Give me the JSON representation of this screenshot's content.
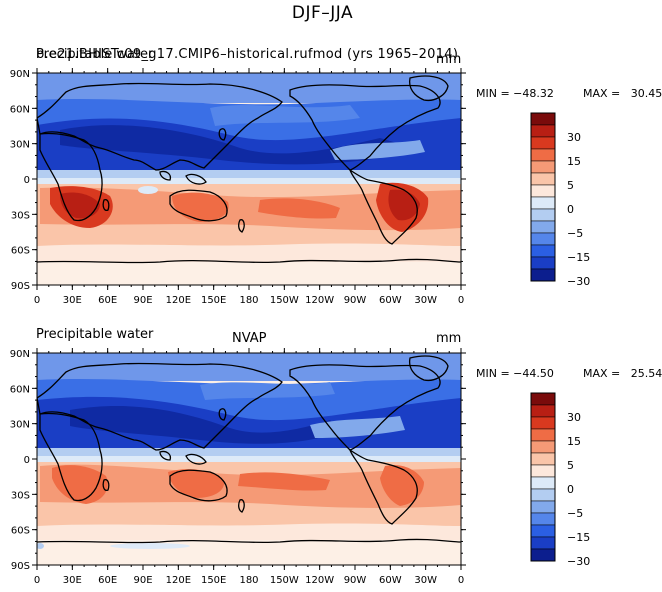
{
  "figure": {
    "title": "DJF–JJA"
  },
  "panels": [
    {
      "left_title": "Precipitable water",
      "overlay_title": "b.e21.BHISTc09_g17.CMIP6–historical.rufmod (yrs 1965–2014)",
      "center_title": "",
      "units": "mm",
      "min_label": "MIN = −48.32",
      "max_label": "MAX =   30.45"
    },
    {
      "left_title": "Precipitable water",
      "overlay_title": "",
      "center_title": "NVAP",
      "units": "mm",
      "min_label": "MIN = −44.50",
      "max_label": "MAX =   25.54"
    }
  ],
  "axes": {
    "lat_ticks": [
      "90N",
      "60N",
      "30N",
      "0",
      "30S",
      "60S",
      "90S"
    ],
    "lon_ticks": [
      "0",
      "30E",
      "60E",
      "90E",
      "120E",
      "150E",
      "180",
      "150W",
      "120W",
      "90W",
      "60W",
      "30W",
      "0"
    ]
  },
  "colorbar": {
    "labels": [
      "30",
      "15",
      "5",
      "0",
      "−5",
      "−15",
      "−30"
    ],
    "colors": [
      "#7a0b0b",
      "#b81f14",
      "#d9391f",
      "#ef6c45",
      "#f59a76",
      "#fac5a9",
      "#fde8dc",
      "#ddeaf8",
      "#b3cdf1",
      "#82a9eb",
      "#5586ea",
      "#2b5fe3",
      "#1a3ec5",
      "#0c1e8e"
    ]
  },
  "palette": {
    "deep_blue": "#1a3ec5",
    "mid_blue": "#3a6fe6",
    "light_blue": "#82a9eb",
    "pale_blue": "#c6dbf7",
    "pale_red": "#fad2bd",
    "light_red": "#f59a76",
    "mid_red": "#ef6c45",
    "deep_red": "#c92d18",
    "land_line": "#000000"
  }
}
